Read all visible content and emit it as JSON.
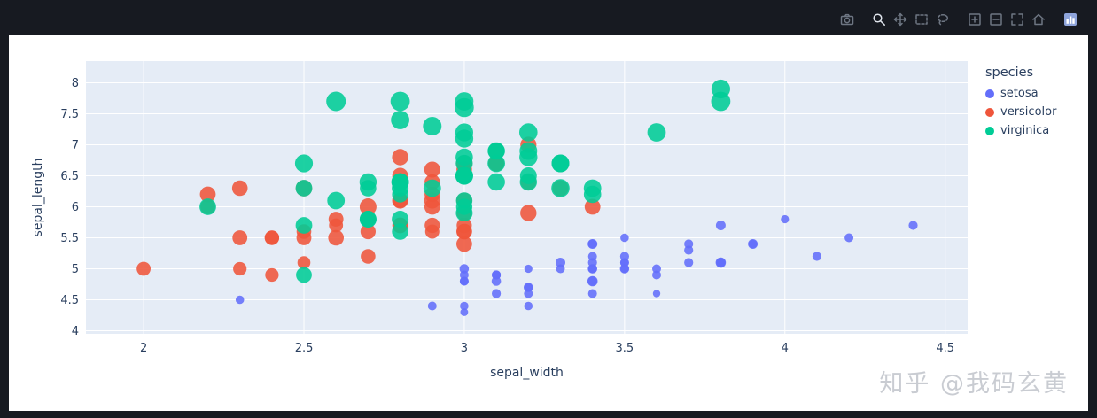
{
  "colors": {
    "page_bg": "#171a21",
    "paper_bg": "#ffffff",
    "plot_bg": "#e5ecf6",
    "grid": "#ffffff",
    "axis_text": "#2a3f5f",
    "setosa": "#636efa",
    "versicolor": "#ef553b",
    "virginica": "#00cc96"
  },
  "modebar": {
    "buttons": [
      {
        "name": "download-plot-icon",
        "label": "Download plot as a png",
        "icon": "camera",
        "group_end": true
      },
      {
        "name": "zoom-icon",
        "label": "Zoom",
        "icon": "zoom",
        "active": true
      },
      {
        "name": "pan-icon",
        "label": "Pan",
        "icon": "pan"
      },
      {
        "name": "box-select-icon",
        "label": "Box Select",
        "icon": "box"
      },
      {
        "name": "lasso-select-icon",
        "label": "Lasso Select",
        "icon": "lasso",
        "group_end": true
      },
      {
        "name": "zoom-in-icon",
        "label": "Zoom in",
        "icon": "zoomin"
      },
      {
        "name": "zoom-out-icon",
        "label": "Zoom out",
        "icon": "zoomout"
      },
      {
        "name": "autoscale-icon",
        "label": "Autoscale",
        "icon": "autoscale"
      },
      {
        "name": "reset-axes-icon",
        "label": "Reset axes",
        "icon": "home",
        "group_end": true
      },
      {
        "name": "plotly-logo-icon",
        "label": "Produced with Plotly",
        "icon": "logo",
        "logo": true
      }
    ]
  },
  "legend": {
    "title": "species",
    "items": [
      {
        "label": "setosa",
        "color": "#636efa"
      },
      {
        "label": "versicolor",
        "color": "#ef553b"
      },
      {
        "label": "virginica",
        "color": "#00cc96"
      }
    ]
  },
  "axes": {
    "x": {
      "title": "sepal_width",
      "range": [
        1.82,
        4.57
      ],
      "ticks": [
        "2",
        "2.5",
        "3",
        "3.5",
        "4",
        "4.5"
      ],
      "tick_values": [
        2,
        2.5,
        3,
        3.5,
        4,
        4.5
      ]
    },
    "y": {
      "title": "sepal_length",
      "range": [
        3.95,
        8.35
      ],
      "ticks": [
        "4",
        "4.5",
        "5",
        "5.5",
        "6",
        "6.5",
        "7",
        "7.5",
        "8"
      ],
      "tick_values": [
        4,
        4.5,
        5,
        5.5,
        6,
        6.5,
        7,
        7.5,
        8
      ]
    }
  },
  "watermark": "知乎 @我码玄黄",
  "chart_data": {
    "type": "scatter",
    "title": "",
    "xlabel": "sepal_width",
    "ylabel": "sepal_length",
    "xlim": [
      1.82,
      4.57
    ],
    "ylim": [
      3.95,
      8.35
    ],
    "grid": true,
    "legend_position": "right",
    "size_by": "petal_length",
    "series": [
      {
        "name": "setosa",
        "color": "#636efa",
        "x": [
          3.5,
          3.0,
          3.2,
          3.1,
          3.6,
          3.9,
          3.4,
          3.4,
          2.9,
          3.1,
          3.7,
          3.4,
          3.0,
          3.0,
          4.0,
          4.4,
          3.9,
          3.5,
          3.8,
          3.8,
          3.4,
          3.7,
          3.6,
          3.3,
          3.4,
          3.0,
          3.4,
          3.5,
          3.4,
          3.2,
          3.1,
          3.4,
          4.1,
          4.2,
          3.1,
          3.2,
          3.5,
          3.6,
          3.0,
          3.4,
          3.5,
          2.3,
          3.2,
          3.5,
          3.8,
          3.0,
          3.8,
          3.2,
          3.7,
          3.3
        ],
        "y": [
          5.1,
          4.9,
          4.7,
          4.6,
          5.0,
          5.4,
          4.6,
          5.0,
          4.4,
          4.9,
          5.4,
          4.8,
          4.8,
          4.3,
          5.8,
          5.7,
          5.4,
          5.1,
          5.7,
          5.1,
          5.4,
          5.1,
          4.6,
          5.1,
          4.8,
          5.0,
          5.0,
          5.2,
          5.2,
          4.7,
          4.8,
          5.4,
          5.2,
          5.5,
          4.9,
          5.0,
          5.5,
          4.9,
          4.4,
          5.1,
          5.0,
          4.5,
          4.4,
          5.0,
          5.1,
          4.8,
          5.1,
          4.6,
          5.3,
          5.0
        ],
        "size": [
          1.4,
          1.4,
          1.3,
          1.5,
          1.4,
          1.7,
          1.4,
          1.5,
          1.4,
          1.5,
          1.5,
          1.6,
          1.4,
          1.1,
          1.2,
          1.5,
          1.3,
          1.4,
          1.7,
          1.5,
          1.7,
          1.5,
          1.0,
          1.7,
          1.9,
          1.6,
          1.6,
          1.5,
          1.4,
          1.6,
          1.6,
          1.5,
          1.5,
          1.4,
          1.5,
          1.2,
          1.3,
          1.4,
          1.3,
          1.5,
          1.3,
          1.3,
          1.3,
          1.6,
          1.9,
          1.4,
          1.6,
          1.4,
          1.5,
          1.4
        ]
      },
      {
        "name": "versicolor",
        "color": "#ef553b",
        "x": [
          3.2,
          3.2,
          3.1,
          2.3,
          2.8,
          2.8,
          3.3,
          2.4,
          2.9,
          2.7,
          2.0,
          3.0,
          2.2,
          2.9,
          2.9,
          3.1,
          3.0,
          2.7,
          2.2,
          2.5,
          3.2,
          2.8,
          2.5,
          2.8,
          2.9,
          3.0,
          2.8,
          3.0,
          2.9,
          2.6,
          2.4,
          2.4,
          2.7,
          2.7,
          3.0,
          3.4,
          3.1,
          2.3,
          3.0,
          2.5,
          2.6,
          3.0,
          2.6,
          2.3,
          2.7,
          3.0,
          2.9,
          2.9,
          2.5,
          2.8
        ],
        "y": [
          7.0,
          6.4,
          6.9,
          5.5,
          6.5,
          5.7,
          6.3,
          4.9,
          6.6,
          5.2,
          5.0,
          5.9,
          6.0,
          6.1,
          5.6,
          6.7,
          5.6,
          5.8,
          6.2,
          5.6,
          5.9,
          6.1,
          6.3,
          6.1,
          6.4,
          6.6,
          6.8,
          6.7,
          6.0,
          5.7,
          5.5,
          5.5,
          5.8,
          6.0,
          5.4,
          6.0,
          6.7,
          6.3,
          5.6,
          5.5,
          5.5,
          6.1,
          5.8,
          5.0,
          5.6,
          5.7,
          5.7,
          6.2,
          5.1,
          5.7
        ],
        "size": [
          4.7,
          4.5,
          4.9,
          4.0,
          4.6,
          4.5,
          4.7,
          3.3,
          4.6,
          3.9,
          3.5,
          4.2,
          4.0,
          4.7,
          3.6,
          4.4,
          4.5,
          4.1,
          4.5,
          3.9,
          4.8,
          4.0,
          4.9,
          4.7,
          4.3,
          4.4,
          4.8,
          5.0,
          4.5,
          3.5,
          3.8,
          3.7,
          3.9,
          5.1,
          4.5,
          4.5,
          4.7,
          4.4,
          4.1,
          4.0,
          4.4,
          4.6,
          4.0,
          3.3,
          4.2,
          4.2,
          4.2,
          4.3,
          3.0,
          4.1
        ]
      },
      {
        "name": "virginica",
        "color": "#00cc96",
        "x": [
          3.3,
          2.7,
          3.0,
          2.9,
          3.0,
          3.0,
          2.5,
          2.9,
          2.5,
          3.6,
          3.2,
          2.7,
          3.0,
          2.5,
          2.8,
          3.2,
          3.0,
          3.8,
          2.6,
          2.2,
          3.2,
          2.8,
          2.8,
          2.7,
          3.3,
          3.2,
          2.8,
          3.0,
          2.8,
          3.0,
          2.8,
          3.8,
          2.8,
          2.8,
          2.6,
          3.0,
          3.4,
          3.1,
          3.0,
          3.1,
          3.1,
          3.1,
          2.7,
          3.2,
          3.3,
          3.0,
          2.5,
          3.0,
          3.4,
          3.0
        ],
        "y": [
          6.3,
          5.8,
          7.1,
          6.3,
          6.5,
          7.6,
          4.9,
          7.3,
          6.7,
          7.2,
          6.5,
          6.4,
          6.8,
          5.7,
          5.8,
          6.4,
          6.5,
          7.7,
          7.7,
          6.0,
          6.9,
          5.6,
          7.7,
          6.3,
          6.7,
          7.2,
          6.2,
          6.1,
          6.4,
          7.2,
          7.4,
          7.9,
          6.4,
          6.3,
          6.1,
          7.7,
          6.3,
          6.4,
          6.0,
          6.9,
          6.7,
          6.9,
          5.8,
          6.8,
          6.7,
          6.7,
          6.3,
          6.5,
          6.2,
          5.9
        ],
        "size": [
          6.0,
          5.1,
          5.9,
          5.6,
          5.8,
          6.6,
          4.5,
          6.3,
          5.8,
          6.1,
          5.1,
          5.3,
          5.5,
          5.0,
          5.1,
          5.3,
          5.5,
          6.7,
          6.9,
          5.0,
          5.7,
          4.9,
          6.7,
          4.9,
          5.7,
          6.0,
          4.8,
          4.9,
          5.6,
          5.8,
          6.1,
          6.4,
          5.6,
          5.1,
          5.6,
          6.1,
          5.6,
          5.5,
          4.8,
          5.4,
          5.6,
          5.1,
          5.1,
          5.9,
          5.7,
          5.2,
          5.0,
          5.2,
          5.4,
          5.1
        ]
      }
    ]
  }
}
